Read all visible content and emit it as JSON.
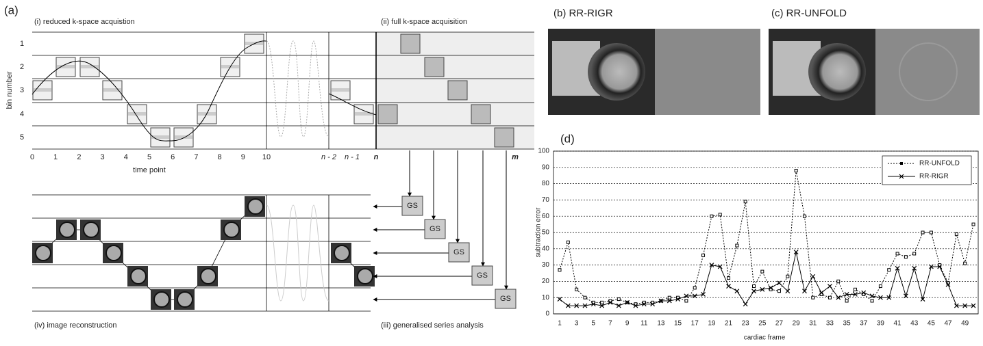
{
  "panel_a": {
    "label": "(a)",
    "captions": {
      "i": "(i) reduced k-space acquistion",
      "ii": "(ii) full k-space acquisition",
      "iii": "(iii) generalised series analysis",
      "iv": "(iv) image reconstruction"
    },
    "y_axis_label": "bin number",
    "bins": [
      "1",
      "2",
      "3",
      "4",
      "5"
    ],
    "x_axis_label": "time point",
    "time_ticks": [
      "0",
      "1",
      "2",
      "3",
      "4",
      "5",
      "6",
      "7",
      "8",
      "9",
      "10"
    ],
    "late_ticks": [
      "n - 2",
      "n - 1",
      "n",
      "m"
    ],
    "gs_boxes": [
      "GS",
      "GS",
      "GS",
      "GS",
      "GS"
    ]
  },
  "panel_b": {
    "label": "(b) RR-RIGR"
  },
  "panel_c": {
    "label": "(c) RR-UNFOLD"
  },
  "chart_data": {
    "type": "line",
    "label": "(d)",
    "y_label": "subtraction error",
    "x_label": "cardiac frame",
    "categories": [
      1,
      null,
      3,
      null,
      5,
      null,
      7,
      null,
      9,
      null,
      11,
      null,
      13,
      null,
      15,
      null,
      17,
      null,
      19,
      null,
      21,
      null,
      23,
      null,
      25,
      null,
      27,
      null,
      29,
      null,
      31,
      null,
      33,
      null,
      35,
      null,
      37,
      null,
      39,
      null,
      41,
      null,
      43,
      null,
      45,
      null,
      47,
      null,
      49,
      null
    ],
    "series": [
      {
        "name": "RR-UNFOLD",
        "color": "#000000",
        "style": "dotted",
        "marker": "square",
        "values": [
          27,
          44,
          15,
          10,
          7,
          7,
          8,
          9,
          7,
          6,
          7,
          7,
          8,
          10,
          10,
          8,
          16,
          36,
          60,
          61,
          22,
          42,
          69,
          17,
          26,
          15,
          14,
          23,
          88,
          60,
          10,
          12,
          10,
          20,
          8,
          15,
          12,
          8,
          17,
          27,
          37,
          35,
          37,
          50,
          50,
          30,
          19,
          49,
          31,
          55
        ]
      },
      {
        "name": "RR-RIGR",
        "color": "#000000",
        "style": "solid",
        "marker": "x",
        "values": [
          9,
          5,
          5,
          5,
          6,
          5,
          7,
          5,
          7,
          5,
          6,
          6,
          8,
          8,
          9,
          11,
          11,
          12,
          30,
          29,
          17,
          14,
          6,
          14,
          15,
          16,
          19,
          14,
          38,
          14,
          23,
          13,
          17,
          10,
          12,
          12,
          13,
          11,
          10,
          10,
          28,
          11,
          28,
          9,
          29,
          29,
          18,
          5,
          5,
          5
        ]
      }
    ],
    "ylim": [
      0,
      100
    ],
    "yticks": [
      0,
      10,
      20,
      30,
      40,
      50,
      60,
      70,
      80,
      90,
      100
    ],
    "grid": true,
    "legend": "upper right"
  }
}
